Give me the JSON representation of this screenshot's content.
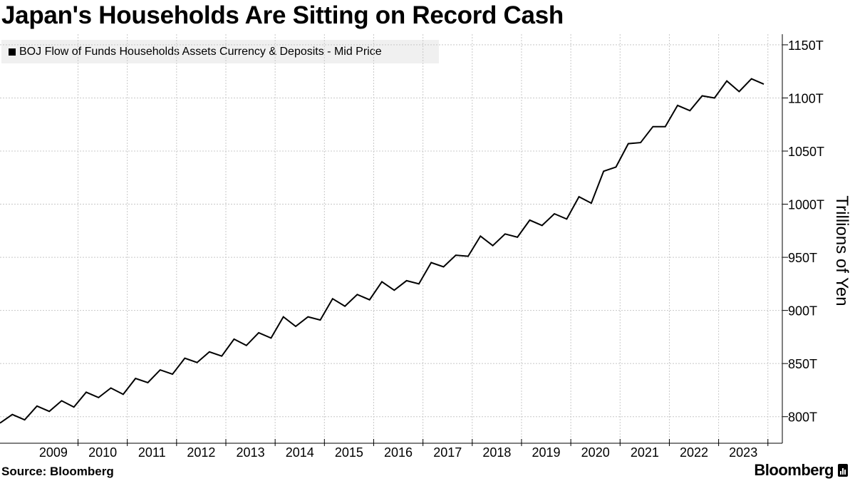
{
  "header": {
    "title": "Japan's Households Are Sitting on Record Cash"
  },
  "footer": {
    "source": "Source: Bloomberg",
    "brand": "Bloomberg"
  },
  "colors": {
    "line": "#000000",
    "grid": "#c8c8c8",
    "legend_bg": "#f0f0f0"
  },
  "chart_data": {
    "type": "line",
    "title": "Japan's Households Are Sitting on Record Cash",
    "xlabel": "",
    "ylabel": "Trillions of Yen",
    "ylim": [
      775,
      1160
    ],
    "xlim": [
      "2008-03",
      "2023-09"
    ],
    "y_ticks": [
      800,
      850,
      900,
      950,
      1000,
      1050,
      1100,
      1150
    ],
    "y_tick_labels": [
      "800T",
      "850T",
      "900T",
      "950T",
      "1000T",
      "1050T",
      "1100T",
      "1150T"
    ],
    "x_tick_labels": [
      "2009",
      "2010",
      "2011",
      "2012",
      "2013",
      "2014",
      "2015",
      "2016",
      "2017",
      "2018",
      "2019",
      "2020",
      "2021",
      "2022",
      "2023"
    ],
    "grid": true,
    "legend_position": "top-left",
    "series": [
      {
        "name": "BOJ Flow of Funds Households Assets Currency & Deposits - Mid Price",
        "x": [
          "2008-03",
          "2008-06",
          "2008-09",
          "2008-12",
          "2009-03",
          "2009-06",
          "2009-09",
          "2009-12",
          "2010-03",
          "2010-06",
          "2010-09",
          "2010-12",
          "2011-03",
          "2011-06",
          "2011-09",
          "2011-12",
          "2012-03",
          "2012-06",
          "2012-09",
          "2012-12",
          "2013-03",
          "2013-06",
          "2013-09",
          "2013-12",
          "2014-03",
          "2014-06",
          "2014-09",
          "2014-12",
          "2015-03",
          "2015-06",
          "2015-09",
          "2015-12",
          "2016-03",
          "2016-06",
          "2016-09",
          "2016-12",
          "2017-03",
          "2017-06",
          "2017-09",
          "2017-12",
          "2018-03",
          "2018-06",
          "2018-09",
          "2018-12",
          "2019-03",
          "2019-06",
          "2019-09",
          "2019-12",
          "2020-03",
          "2020-06",
          "2020-09",
          "2020-12",
          "2021-03",
          "2021-06",
          "2021-09",
          "2021-12",
          "2022-03",
          "2022-06",
          "2022-09",
          "2022-12",
          "2023-03",
          "2023-06",
          "2023-09"
        ],
        "values": [
          794,
          802,
          797,
          810,
          805,
          815,
          809,
          823,
          818,
          827,
          821,
          836,
          832,
          844,
          840,
          855,
          851,
          861,
          857,
          873,
          867,
          879,
          874,
          894,
          885,
          894,
          891,
          911,
          904,
          915,
          910,
          927,
          919,
          928,
          925,
          945,
          941,
          952,
          951,
          970,
          961,
          972,
          969,
          985,
          980,
          991,
          986,
          1007,
          1001,
          1031,
          1035,
          1057,
          1058,
          1073,
          1073,
          1093,
          1088,
          1102,
          1100,
          1116,
          1106,
          1118,
          1113
        ]
      }
    ]
  }
}
